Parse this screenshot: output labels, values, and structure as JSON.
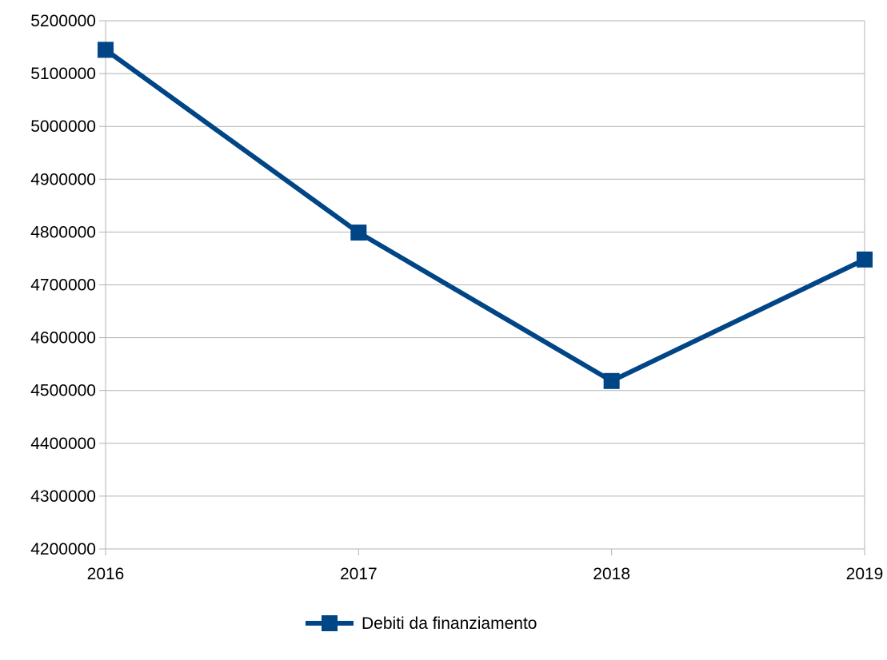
{
  "chart_data": {
    "type": "line",
    "title": "",
    "xlabel": "",
    "ylabel": "",
    "categories": [
      "2016",
      "2017",
      "2018",
      "2019"
    ],
    "series": [
      {
        "name": "Debiti da finanziamento",
        "values": [
          5145000,
          4799000,
          4518000,
          4748000
        ],
        "color": "#004586",
        "marker": "square"
      }
    ],
    "ylim": [
      4200000,
      5200000
    ],
    "yticks": [
      "4200000",
      "4300000",
      "4400000",
      "4500000",
      "4600000",
      "4700000",
      "4800000",
      "4900000",
      "5000000",
      "5100000",
      "5200000"
    ],
    "grid": "horizontal",
    "legend": "bottom-center"
  }
}
